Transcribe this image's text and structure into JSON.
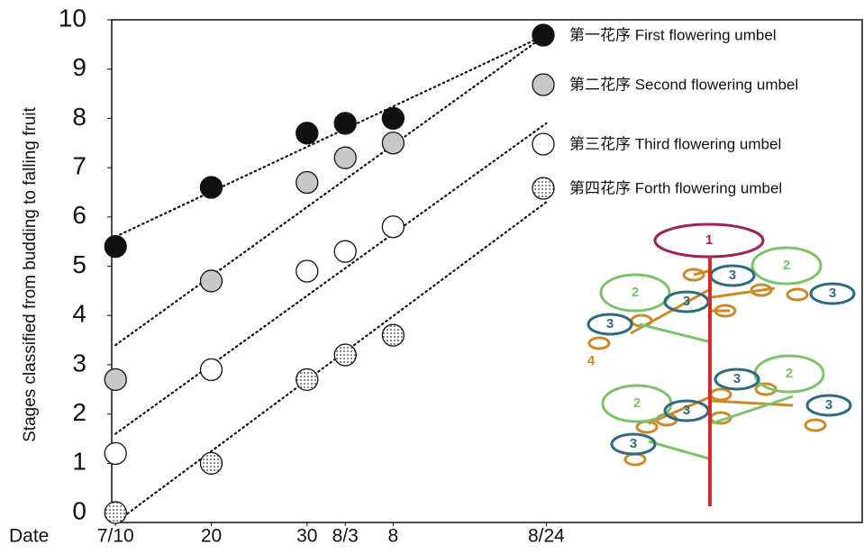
{
  "chart_data": {
    "type": "scatter",
    "y_label": "Stages classified from budding to falling fruit",
    "x_label": "Date",
    "xlim": [
      9.6,
      88
    ],
    "ylim": [
      -0.2,
      10
    ],
    "xticks": [
      {
        "value": 10,
        "label": "7/10"
      },
      20,
      30,
      {
        "value": 34,
        "label": "8/3"
      },
      {
        "value": 39,
        "label": "8"
      },
      {
        "value": 55,
        "label": "8/24"
      }
    ],
    "yticks": [
      0,
      1,
      2,
      3,
      4,
      5,
      6,
      7,
      8,
      9,
      10
    ],
    "series": [
      {
        "name": "第一花序 First flowering umbel",
        "color": "#111111",
        "x": [
          10,
          20,
          30,
          34,
          39
        ],
        "values": [
          5.4,
          6.6,
          7.7,
          7.9,
          8.0
        ],
        "trend_x": [
          10,
          55
        ],
        "trend_y": [
          5.6,
          9.7
        ]
      },
      {
        "name": "第二花序 Second flowering umbel",
        "color": "#c8c8c8",
        "x": [
          10,
          20,
          30,
          34,
          39
        ],
        "values": [
          2.7,
          4.7,
          6.7,
          7.2,
          7.5
        ],
        "trend_x": [
          10,
          55
        ],
        "trend_y": [
          3.4,
          9.7
        ]
      },
      {
        "name": "第三花序 Third flowering umbel",
        "color": "#ffffff",
        "x": [
          10,
          20,
          30,
          34,
          39
        ],
        "values": [
          1.2,
          2.9,
          4.9,
          5.3,
          5.8
        ],
        "trend_x": [
          10,
          55
        ],
        "trend_y": [
          1.6,
          7.9
        ]
      },
      {
        "name": "第四花序 Forth flowering umbel",
        "color": "dots",
        "x": [
          10,
          20,
          30,
          34,
          39
        ],
        "values": [
          0,
          1.0,
          2.7,
          3.2,
          3.6
        ],
        "trend_x": [
          10,
          55
        ],
        "trend_y": [
          -0.2,
          6.3
        ]
      }
    ],
    "inset": {
      "labels": [
        "1",
        "2",
        "3",
        "4"
      ]
    }
  }
}
